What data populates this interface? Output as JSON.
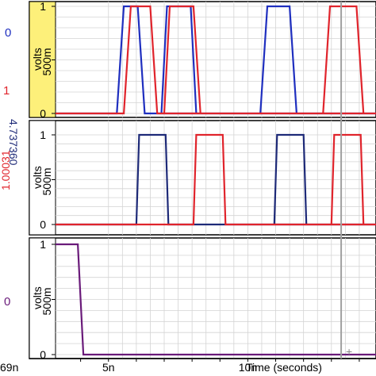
{
  "colors": {
    "blue": "#1f2fbf",
    "navy": "#1e2a78",
    "red": "#e0242c",
    "purple": "#6a1b7a",
    "cursor": "#a0a0a0",
    "highlight": "#fdf07a",
    "grid": "#d4d4d4",
    "frame": "#000000"
  },
  "left_labels": {
    "panel1_top": "0",
    "panel1_bottom": "1",
    "panel2_blue": "4.737360",
    "panel2_red": "1.00031",
    "panel3": "0",
    "bottom": "69n"
  },
  "x_axis": {
    "ticks": [
      {
        "x": 5,
        "label": "5n"
      },
      {
        "x": 10,
        "label": "10n"
      }
    ],
    "label": "Time (seconds)",
    "xlim": [
      3.1,
      14.6
    ]
  },
  "chart_data": [
    {
      "type": "line",
      "ylabel": "volts",
      "ylim": [
        0,
        1.05
      ],
      "yticks": [
        {
          "y": 0,
          "label": "0"
        },
        {
          "y": 0.5,
          "label": "500m"
        },
        {
          "y": 1,
          "label": "1"
        }
      ],
      "grid": true,
      "highlight": true,
      "series": [
        {
          "color": "blue",
          "x": [
            3.1,
            5.3,
            5.55,
            6.05,
            6.3,
            14.6
          ],
          "y": [
            0,
            0,
            1,
            1,
            0,
            0
          ]
        },
        {
          "color": "blue",
          "x": [
            6.9,
            7.1,
            7.95,
            8.15
          ],
          "y": [
            0,
            1,
            1,
            0
          ]
        },
        {
          "color": "blue",
          "x": [
            10.45,
            10.7,
            11.5,
            11.75
          ],
          "y": [
            0,
            1,
            1,
            0
          ]
        },
        {
          "color": "red",
          "x": [
            3.1,
            5.55,
            5.8,
            6.5,
            6.75,
            14.6
          ],
          "y": [
            0,
            0,
            1,
            1,
            0,
            0
          ]
        },
        {
          "color": "red",
          "x": [
            7.0,
            7.2,
            8.05,
            8.3
          ],
          "y": [
            0,
            1,
            1,
            0
          ]
        },
        {
          "color": "red",
          "x": [
            12.7,
            12.95,
            13.9,
            14.15
          ],
          "y": [
            0,
            1,
            1,
            0
          ]
        }
      ]
    },
    {
      "type": "line",
      "ylabel": "volts",
      "ylim": [
        0,
        1.05
      ],
      "yticks": [
        {
          "y": 0,
          "label": "0"
        },
        {
          "y": 0.5,
          "label": "500m"
        },
        {
          "y": 1,
          "label": "1"
        }
      ],
      "grid": true,
      "highlight": false,
      "series": [
        {
          "color": "navy",
          "x": [
            3.1,
            6.0,
            6.1,
            7.05,
            7.15,
            14.6
          ],
          "y": [
            0,
            0,
            1,
            1,
            0,
            0
          ]
        },
        {
          "color": "navy",
          "x": [
            10.95,
            11.05,
            12.0,
            12.1
          ],
          "y": [
            0,
            1,
            1,
            0
          ]
        },
        {
          "color": "red",
          "x": [
            3.1,
            8.05,
            8.15,
            9.1,
            9.2,
            14.6
          ],
          "y": [
            0,
            0,
            1,
            1,
            0,
            0
          ]
        },
        {
          "color": "red",
          "x": [
            13.0,
            13.1,
            14.05,
            14.15
          ],
          "y": [
            0,
            1,
            1,
            0
          ]
        }
      ]
    },
    {
      "type": "line",
      "ylabel": "volts",
      "ylim": [
        0,
        1.05
      ],
      "yticks": [
        {
          "y": 0,
          "label": "0"
        },
        {
          "y": 0.5,
          "label": "500m"
        },
        {
          "y": 1,
          "label": "1"
        }
      ],
      "grid": true,
      "highlight": false,
      "series": [
        {
          "color": "purple",
          "x": [
            3.1,
            3.9,
            4.1,
            14.6
          ],
          "y": [
            1,
            1,
            0,
            0
          ]
        }
      ]
    }
  ],
  "cursor_x": 13.35
}
